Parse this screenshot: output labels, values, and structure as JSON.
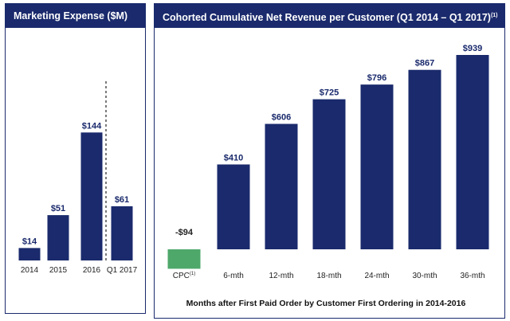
{
  "colors": {
    "navy": "#1a2a6c",
    "green": "#4ea86a",
    "frame": "#1a2a6c"
  },
  "left_panel": {
    "title": "Marketing Expense ($M)"
  },
  "right_panel": {
    "title": "Cohorted Cumulative Net Revenue per Customer (Q1 2014 – Q1 2017)",
    "title_footnote": "(1)",
    "caption": "Months after First Paid Order by Customer First Ordering in 2014-2016"
  },
  "chart_data": [
    {
      "type": "bar",
      "title": "Marketing Expense ($M)",
      "categories": [
        "2014",
        "2015",
        "2016",
        "Q1 2017"
      ],
      "values": [
        14,
        51,
        144,
        61
      ],
      "value_labels": [
        "$14",
        "$51",
        "$144",
        "$61"
      ],
      "ylim": [
        0,
        190
      ],
      "divider_before": "Q1 2017",
      "divider_style": "dashed",
      "grid": false,
      "bar_color": "#1a2a6c"
    },
    {
      "type": "bar",
      "title": "Cohorted Cumulative Net Revenue per Customer (Q1 2014 – Q1 2017)",
      "categories": [
        "CPC",
        "6-mth",
        "12-mth",
        "18-mth",
        "24-mth",
        "30-mth",
        "36-mth"
      ],
      "category_footnotes": [
        "(1)",
        "",
        "",
        "",
        "",
        "",
        ""
      ],
      "values": [
        -94,
        410,
        606,
        725,
        796,
        867,
        939
      ],
      "value_labels": [
        "-$94",
        "$410",
        "$606",
        "$725",
        "$796",
        "$867",
        "$939"
      ],
      "xlabel": "Months after First Paid Order by Customer First Ordering in 2014-2016",
      "ylim": [
        -94,
        939
      ],
      "grid": false,
      "bar_color": "#1a2a6c",
      "negative_color": "#4ea86a"
    }
  ]
}
